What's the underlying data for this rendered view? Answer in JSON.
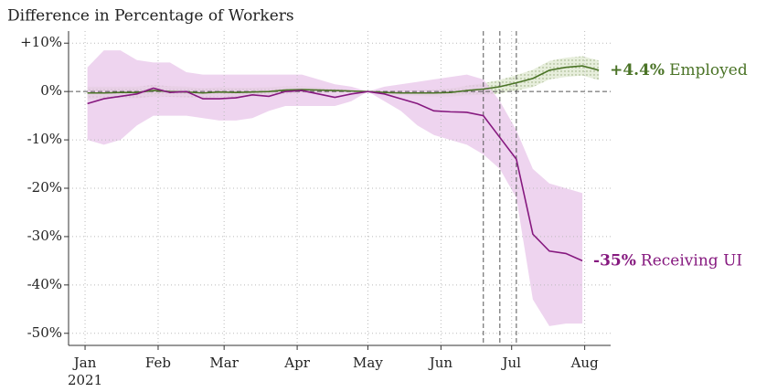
{
  "chart_data": {
    "type": "line",
    "title": "Difference in Percentage of Workers",
    "xlim": [
      -7,
      223
    ],
    "ylim": [
      -52.5,
      12.5
    ],
    "xticks": [
      {
        "value": 0,
        "label": "Jan"
      },
      {
        "value": 31,
        "label": "Feb"
      },
      {
        "value": 59,
        "label": "Mar"
      },
      {
        "value": 90,
        "label": "Apr"
      },
      {
        "value": 120,
        "label": "May"
      },
      {
        "value": 151,
        "label": "Jun"
      },
      {
        "value": 181,
        "label": "Jul"
      },
      {
        "value": 212,
        "label": "Aug"
      }
    ],
    "x_year": "2021",
    "yticks": [
      {
        "value": 10,
        "label": "+10%"
      },
      {
        "value": 0,
        "label": "0%"
      },
      {
        "value": -10,
        "label": "-10%"
      },
      {
        "value": -20,
        "label": "-20%"
      },
      {
        "value": -30,
        "label": "-30%"
      },
      {
        "value": -40,
        "label": "-40%"
      },
      {
        "value": -50,
        "label": "-50%"
      }
    ],
    "grid": true,
    "vlines": [
      169,
      176,
      183
    ],
    "series": [
      {
        "name": "Employed",
        "end_label": "+4.4%",
        "color": "#4a7326",
        "band_color": "#dfe8d2",
        "x": [
          1,
          8,
          15,
          22,
          29,
          36,
          43,
          50,
          57,
          64,
          71,
          78,
          85,
          92,
          99,
          106,
          113,
          120,
          127,
          134,
          141,
          148,
          155,
          162,
          169,
          176,
          183,
          190,
          197,
          204,
          211,
          218
        ],
        "values": [
          -0.3,
          -0.3,
          -0.2,
          -0.2,
          0.2,
          0,
          -0.1,
          -0.3,
          -0.1,
          -0.2,
          -0.1,
          0,
          0.3,
          0.4,
          0.3,
          0.2,
          0.1,
          0,
          -0.2,
          -0.3,
          -0.3,
          -0.3,
          -0.2,
          0.2,
          0.5,
          1.0,
          1.8,
          2.7,
          4.4,
          5.0,
          5.3,
          4.4
        ],
        "lower": [
          -1.6,
          -1.6,
          -1.4,
          -1.4,
          -1.0,
          -1.1,
          -1.2,
          -1.3,
          -1.1,
          -1.2,
          -1.0,
          -0.9,
          -0.5,
          -0.3,
          -0.3,
          -0.2,
          -0.1,
          0,
          -0.5,
          -0.8,
          -0.9,
          -1.0,
          -1.0,
          -0.8,
          -0.7,
          -0.4,
          0.2,
          0.9,
          2.5,
          3.0,
          3.3,
          2.4
        ],
        "upper": [
          1.0,
          1.0,
          1.0,
          1.0,
          1.4,
          1.1,
          1.0,
          0.7,
          0.9,
          0.8,
          0.8,
          0.9,
          1.1,
          1.1,
          0.9,
          0.6,
          0.3,
          0,
          0.1,
          0.2,
          0.3,
          0.4,
          0.6,
          1.2,
          1.7,
          2.4,
          3.4,
          4.5,
          6.3,
          7.0,
          7.3,
          6.4
        ]
      },
      {
        "name": "Receiving UI",
        "end_label": "-35%",
        "color": "#86197f",
        "band_color": "#e8c6ea",
        "x": [
          1,
          8,
          15,
          22,
          29,
          36,
          43,
          50,
          57,
          64,
          71,
          78,
          85,
          92,
          99,
          106,
          113,
          120,
          127,
          134,
          141,
          148,
          155,
          162,
          169,
          176,
          183,
          190,
          197,
          204,
          211
        ],
        "values": [
          -2.5,
          -1.5,
          -1.0,
          -0.5,
          0.7,
          -0.2,
          0,
          -1.5,
          -1.5,
          -1.3,
          -0.7,
          -1.0,
          0,
          0.2,
          -0.5,
          -1.2,
          -0.5,
          0,
          -0.5,
          -1.5,
          -2.5,
          -4.0,
          -4.2,
          -4.3,
          -5.0,
          -9.5,
          -14.0,
          -29.5,
          -33.0,
          -33.5,
          -35
        ],
        "lower": [
          -10,
          -11,
          -10,
          -7,
          -5,
          -5,
          -5,
          -5.5,
          -6,
          -6,
          -5.5,
          -4,
          -3,
          -3,
          -3,
          -3,
          -2,
          0,
          -2,
          -4,
          -7,
          -9,
          -10,
          -11,
          -13,
          -16,
          -22,
          -43,
          -48.5,
          -48,
          -48
        ],
        "upper": [
          5,
          8.5,
          8.5,
          6.5,
          6,
          6,
          4,
          3.5,
          3.5,
          3.5,
          3.5,
          3.5,
          3.5,
          3.5,
          2.5,
          1.5,
          1,
          0,
          1,
          1.5,
          2,
          2.5,
          3,
          3.5,
          2.5,
          -2,
          -8,
          -16,
          -19,
          -20,
          -21
        ]
      }
    ]
  }
}
